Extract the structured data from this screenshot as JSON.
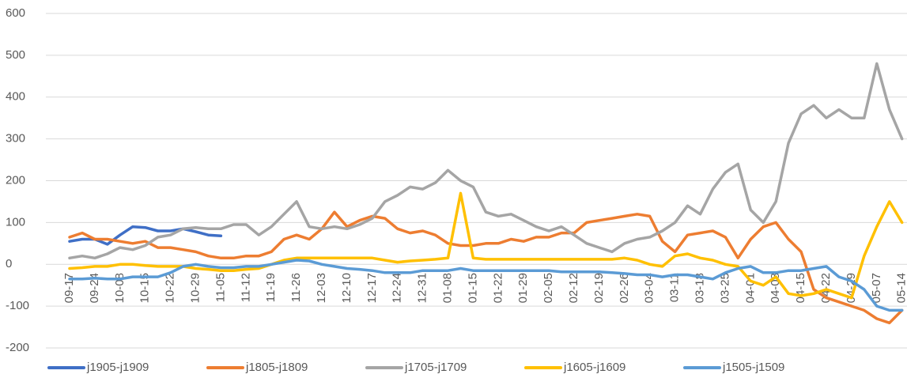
{
  "chart_data": {
    "type": "line",
    "categories": [
      "09-17",
      null,
      "09-24",
      null,
      "10-08",
      null,
      "10-15",
      null,
      "10-22",
      null,
      "10-29",
      null,
      "11-05",
      null,
      "11-12",
      null,
      "11-19",
      null,
      "11-26",
      null,
      "12-03",
      null,
      "12-10",
      null,
      "12-17",
      null,
      "12-24",
      null,
      "12-31",
      null,
      "01-08",
      null,
      "01-15",
      null,
      "01-22",
      null,
      "01-29",
      null,
      "02-05",
      null,
      "02-12",
      null,
      "02-19",
      null,
      "02-26",
      null,
      "03-04",
      null,
      "03-11",
      null,
      "03-18",
      null,
      "03-25",
      null,
      "04-01",
      null,
      "04-08",
      null,
      "04-15",
      null,
      "04-22",
      null,
      "04-29",
      null,
      "05-07",
      null,
      "05-14"
    ],
    "series": [
      {
        "name": "j1905-j1909",
        "color": "#3f6fc6",
        "values": [
          55,
          60,
          60,
          48,
          70,
          90,
          88,
          80,
          80,
          85,
          78,
          70,
          68,
          null,
          null,
          null,
          null,
          null,
          null,
          null,
          null,
          null,
          null,
          null,
          null,
          null,
          null,
          null,
          null,
          null,
          null,
          null,
          null,
          null,
          null,
          null,
          null,
          null,
          null,
          null,
          null,
          null,
          null,
          null,
          null,
          null,
          null,
          null,
          null,
          null,
          null,
          null,
          null,
          null,
          null,
          null,
          null,
          null,
          null,
          null,
          null,
          null,
          null,
          null,
          null,
          null,
          null
        ]
      },
      {
        "name": "j1805-j1809",
        "color": "#ed7d31",
        "values": [
          65,
          75,
          60,
          60,
          55,
          50,
          55,
          40,
          40,
          35,
          30,
          20,
          15,
          15,
          20,
          20,
          30,
          60,
          70,
          60,
          85,
          125,
          90,
          105,
          115,
          110,
          85,
          75,
          80,
          70,
          50,
          45,
          45,
          50,
          50,
          60,
          55,
          65,
          65,
          75,
          75,
          100,
          105,
          110,
          115,
          120,
          115,
          55,
          30,
          70,
          75,
          80,
          65,
          15,
          60,
          90,
          100,
          60,
          30,
          -60,
          -80,
          -90,
          -100,
          -110,
          -130,
          -140,
          -110
        ]
      },
      {
        "name": "j1705-j1709",
        "color": "#a5a5a5",
        "values": [
          15,
          20,
          15,
          25,
          40,
          35,
          45,
          65,
          70,
          85,
          88,
          85,
          85,
          95,
          95,
          70,
          90,
          120,
          150,
          90,
          85,
          90,
          85,
          95,
          110,
          150,
          165,
          185,
          180,
          195,
          225,
          200,
          185,
          125,
          115,
          120,
          105,
          90,
          80,
          90,
          70,
          50,
          40,
          30,
          50,
          60,
          65,
          80,
          100,
          140,
          120,
          180,
          220,
          240,
          130,
          100,
          150,
          290,
          360,
          380,
          350,
          370,
          350,
          350,
          480,
          370,
          300
        ]
      },
      {
        "name": "j1605-j1609",
        "color": "#ffc000",
        "values": [
          -10,
          -8,
          -5,
          -5,
          0,
          0,
          -3,
          -5,
          -5,
          -5,
          -10,
          -12,
          -15,
          -15,
          -12,
          -10,
          0,
          10,
          15,
          15,
          15,
          15,
          15,
          15,
          15,
          10,
          5,
          8,
          10,
          12,
          15,
          170,
          15,
          12,
          12,
          12,
          12,
          12,
          12,
          12,
          12,
          12,
          12,
          12,
          15,
          10,
          0,
          -5,
          20,
          25,
          15,
          10,
          0,
          -5,
          -40,
          -50,
          -30,
          -70,
          -75,
          -70,
          -60,
          -70,
          -80,
          20,
          90,
          150,
          100
        ]
      },
      {
        "name": "j1505-j1509",
        "color": "#5b9bd5",
        "values": [
          -35,
          -35,
          -33,
          -35,
          -35,
          -30,
          -30,
          -30,
          -20,
          -5,
          0,
          -5,
          -8,
          -8,
          -5,
          -5,
          0,
          5,
          10,
          8,
          0,
          -5,
          -10,
          -12,
          -15,
          -20,
          -20,
          -20,
          -15,
          -15,
          -15,
          -10,
          -15,
          -15,
          -15,
          -15,
          -15,
          -15,
          -15,
          -18,
          -18,
          -18,
          -18,
          -20,
          -22,
          -25,
          -25,
          -30,
          -25,
          -25,
          -30,
          -35,
          -20,
          -10,
          -5,
          -20,
          -20,
          -15,
          -15,
          -10,
          -5,
          -30,
          -40,
          -60,
          -100,
          -110,
          -110
        ]
      }
    ],
    "ylim": [
      -200,
      600
    ],
    "yticks": [
      -200,
      -100,
      0,
      100,
      200,
      300,
      400,
      500,
      600
    ],
    "grid": true,
    "legend": "bottom"
  }
}
